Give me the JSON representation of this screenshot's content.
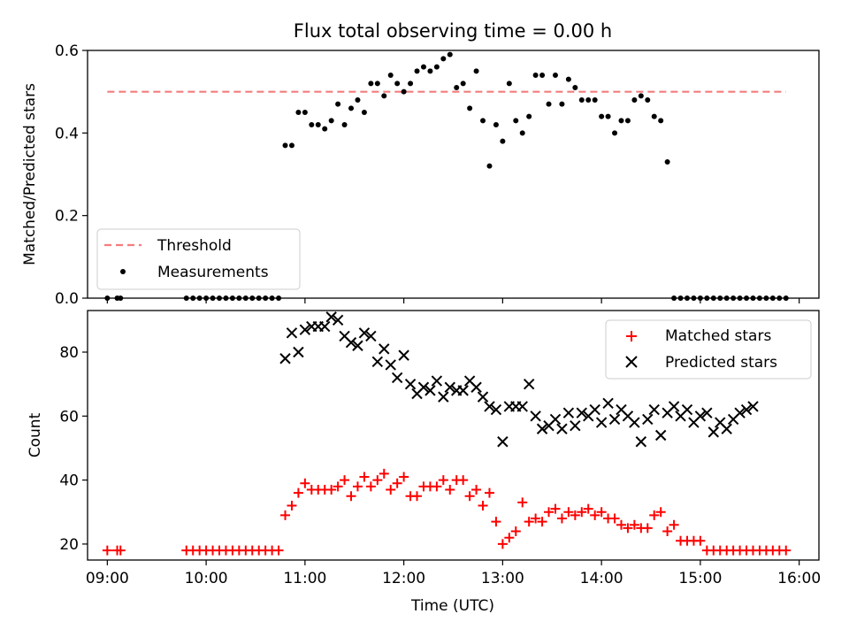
{
  "colors": {
    "threshold": "#f47c7c",
    "measurement": "#000000",
    "matched": "#ff0000",
    "predicted": "#000000"
  },
  "title": "Flux total observing time = 0.00 h",
  "chart_data": [
    {
      "type": "scatter",
      "ylabel": "Matched/Predicted stars",
      "ylim": [
        0,
        0.6
      ],
      "yticks": [
        0.0,
        0.2,
        0.4,
        0.6
      ],
      "ytick_labels": [
        "0.0",
        "0.2",
        "0.4",
        "0.6"
      ],
      "xlim": [
        "08:48",
        "16:12"
      ],
      "legend": "lower-left",
      "threshold": {
        "name": "Threshold",
        "value": 0.5,
        "x": [
          "09:00",
          "15:52"
        ]
      },
      "series": [
        {
          "name": "Measurements",
          "x": [
            "09:00",
            "09:06",
            "09:08",
            "09:48",
            "09:52",
            "09:56",
            "10:00",
            "10:04",
            "10:08",
            "10:12",
            "10:16",
            "10:20",
            "10:24",
            "10:28",
            "10:32",
            "10:36",
            "10:40",
            "10:44",
            "10:48",
            "10:52",
            "10:56",
            "11:00",
            "11:04",
            "11:08",
            "11:12",
            "11:16",
            "11:20",
            "11:24",
            "11:28",
            "11:32",
            "11:36",
            "11:40",
            "11:44",
            "11:48",
            "11:52",
            "11:56",
            "12:00",
            "12:04",
            "12:08",
            "12:12",
            "12:16",
            "12:20",
            "12:24",
            "12:28",
            "12:32",
            "12:36",
            "12:40",
            "12:44",
            "12:48",
            "12:52",
            "12:56",
            "13:00",
            "13:04",
            "13:08",
            "13:12",
            "13:16",
            "13:20",
            "13:24",
            "13:28",
            "13:32",
            "13:36",
            "13:40",
            "13:44",
            "13:48",
            "13:52",
            "13:56",
            "14:00",
            "14:04",
            "14:08",
            "14:12",
            "14:16",
            "14:20",
            "14:24",
            "14:28",
            "14:32",
            "14:36",
            "14:40",
            "14:44",
            "14:48",
            "14:52",
            "14:56",
            "15:00",
            "15:04",
            "15:08",
            "15:12",
            "15:16",
            "15:20",
            "15:24",
            "15:28",
            "15:32",
            "15:36",
            "15:40",
            "15:44",
            "15:48",
            "15:52"
          ],
          "y": [
            0.0,
            0.0,
            0.0,
            0.0,
            0.0,
            0.0,
            0.0,
            0.0,
            0.0,
            0.0,
            0.0,
            0.0,
            0.0,
            0.0,
            0.0,
            0.0,
            0.0,
            0.0,
            0.37,
            0.37,
            0.45,
            0.45,
            0.42,
            0.42,
            0.41,
            0.43,
            0.47,
            0.42,
            0.46,
            0.48,
            0.45,
            0.52,
            0.52,
            0.49,
            0.54,
            0.52,
            0.5,
            0.52,
            0.55,
            0.56,
            0.55,
            0.56,
            0.58,
            0.59,
            0.51,
            0.52,
            0.46,
            0.55,
            0.43,
            0.32,
            0.42,
            0.38,
            0.52,
            0.43,
            0.4,
            0.44,
            0.54,
            0.54,
            0.47,
            0.54,
            0.47,
            0.53,
            0.51,
            0.48,
            0.48,
            0.48,
            0.44,
            0.44,
            0.4,
            0.43,
            0.43,
            0.48,
            0.49,
            0.48,
            0.44,
            0.43,
            0.33,
            0.0,
            0.0,
            0.0,
            0.0,
            0.0,
            0.0,
            0.0,
            0.0,
            0.0,
            0.0,
            0.0,
            0.0,
            0.0,
            0.0,
            0.0,
            0.0,
            0.0,
            0.0
          ]
        }
      ]
    },
    {
      "type": "scatter",
      "ylabel": "Count",
      "xlabel": "Time (UTC)",
      "ylim": [
        15,
        93
      ],
      "yticks": [
        20,
        40,
        60,
        80
      ],
      "ytick_labels": [
        "20",
        "40",
        "60",
        "80"
      ],
      "xlim": [
        "08:48",
        "16:12"
      ],
      "xticks": [
        "09:00",
        "10:00",
        "11:00",
        "12:00",
        "13:00",
        "14:00",
        "15:00",
        "16:00"
      ],
      "xtick_labels": [
        "09:00",
        "10:00",
        "11:00",
        "12:00",
        "13:00",
        "14:00",
        "15:00",
        "16:00"
      ],
      "legend": "upper-right",
      "series": [
        {
          "name": "Matched stars",
          "marker": "plus",
          "x": [
            "09:00",
            "09:06",
            "09:08",
            "09:48",
            "09:52",
            "09:56",
            "10:00",
            "10:04",
            "10:08",
            "10:12",
            "10:16",
            "10:20",
            "10:24",
            "10:28",
            "10:32",
            "10:36",
            "10:40",
            "10:44",
            "10:48",
            "10:52",
            "10:56",
            "11:00",
            "11:04",
            "11:08",
            "11:12",
            "11:16",
            "11:20",
            "11:24",
            "11:28",
            "11:32",
            "11:36",
            "11:40",
            "11:44",
            "11:48",
            "11:52",
            "11:56",
            "12:00",
            "12:04",
            "12:08",
            "12:12",
            "12:16",
            "12:20",
            "12:24",
            "12:28",
            "12:32",
            "12:36",
            "12:40",
            "12:44",
            "12:48",
            "12:52",
            "12:56",
            "13:00",
            "13:04",
            "13:08",
            "13:12",
            "13:16",
            "13:20",
            "13:24",
            "13:28",
            "13:32",
            "13:36",
            "13:40",
            "13:44",
            "13:48",
            "13:52",
            "13:56",
            "14:00",
            "14:04",
            "14:08",
            "14:12",
            "14:16",
            "14:20",
            "14:24",
            "14:28",
            "14:32",
            "14:36",
            "14:40",
            "14:44",
            "14:48",
            "14:52",
            "14:56",
            "15:00",
            "15:04",
            "15:08",
            "15:12",
            "15:16",
            "15:20",
            "15:24",
            "15:28",
            "15:32",
            "15:36",
            "15:40",
            "15:44",
            "15:48",
            "15:52"
          ],
          "y": [
            18,
            18,
            18,
            18,
            18,
            18,
            18,
            18,
            18,
            18,
            18,
            18,
            18,
            18,
            18,
            18,
            18,
            18,
            29,
            32,
            36,
            39,
            37,
            37,
            37,
            37,
            38,
            40,
            35,
            38,
            41,
            38,
            40,
            42,
            37,
            39,
            41,
            35,
            35,
            38,
            38,
            38,
            40,
            37,
            40,
            40,
            35,
            37,
            32,
            36,
            27,
            20,
            22,
            24,
            33,
            27,
            28,
            27,
            30,
            31,
            28,
            30,
            29,
            30,
            31,
            29,
            30,
            28,
            28,
            26,
            25,
            26,
            25,
            25,
            29,
            30,
            24,
            26,
            21,
            21,
            21,
            21,
            18,
            18,
            18,
            18,
            18,
            18,
            18,
            18,
            18,
            18,
            18,
            18,
            18
          ]
        },
        {
          "name": "Predicted stars",
          "marker": "x",
          "x": [
            "10:48",
            "10:52",
            "10:56",
            "11:00",
            "11:04",
            "11:08",
            "11:12",
            "11:16",
            "11:20",
            "11:24",
            "11:28",
            "11:32",
            "11:36",
            "11:40",
            "11:44",
            "11:48",
            "11:52",
            "11:56",
            "12:00",
            "12:04",
            "12:08",
            "12:12",
            "12:16",
            "12:20",
            "12:24",
            "12:28",
            "12:32",
            "12:36",
            "12:40",
            "12:44",
            "12:48",
            "12:52",
            "12:56",
            "13:00",
            "13:04",
            "13:08",
            "13:12",
            "13:16",
            "13:20",
            "13:24",
            "13:28",
            "13:32",
            "13:36",
            "13:40",
            "13:44",
            "13:48",
            "13:52",
            "13:56",
            "14:00",
            "14:04",
            "14:08",
            "14:12",
            "14:16",
            "14:20",
            "14:24",
            "14:28",
            "14:32",
            "14:36",
            "14:40",
            "14:44",
            "14:48",
            "14:52",
            "14:56",
            "15:00",
            "15:04",
            "15:08",
            "15:12",
            "15:16",
            "15:20",
            "15:24",
            "15:28",
            "15:32"
          ],
          "y": [
            78,
            86,
            80,
            87,
            88,
            88,
            88,
            91,
            90,
            85,
            83,
            82,
            86,
            85,
            77,
            81,
            76,
            72,
            79,
            70,
            67,
            69,
            68,
            71,
            66,
            69,
            68,
            68,
            71,
            69,
            66,
            63,
            62,
            52,
            63,
            63,
            63,
            70,
            60,
            56,
            57,
            59,
            56,
            61,
            57,
            61,
            60,
            62,
            58,
            64,
            59,
            62,
            60,
            58,
            52,
            59,
            62,
            54,
            61,
            63,
            60,
            62,
            58,
            60,
            61,
            55,
            58,
            56,
            59,
            61,
            62,
            63
          ]
        }
      ]
    }
  ]
}
